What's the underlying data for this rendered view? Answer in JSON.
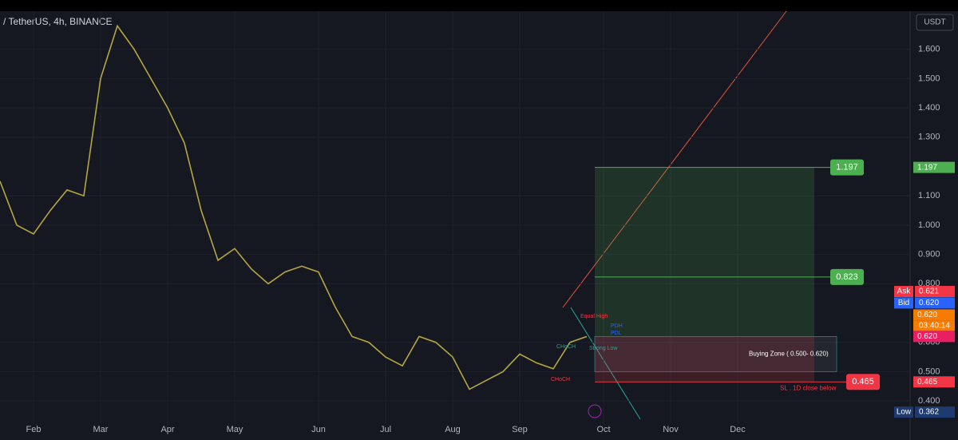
{
  "chart_data": {
    "type": "line",
    "title": "/ TetherUS, 4h, BINANCE",
    "currency": "USDT",
    "color": "#b5a642",
    "categories": [
      null,
      null,
      "Feb",
      null,
      null,
      null,
      "Mar",
      null,
      null,
      null,
      "Apr",
      null,
      null,
      null,
      "May",
      null,
      null,
      null,
      null,
      "Jun",
      null,
      null,
      null,
      "Jul",
      null,
      null,
      null,
      "Aug",
      null,
      null,
      null,
      "Sep",
      null,
      null,
      null,
      null,
      "Oct",
      null,
      null,
      null,
      "Nov",
      null,
      null,
      null,
      "Dec",
      null,
      null,
      null,
      null,
      null,
      null,
      null,
      null,
      null
    ],
    "values": [
      1.15,
      1.0,
      0.97,
      1.05,
      1.12,
      1.1,
      1.5,
      1.68,
      1.6,
      1.5,
      1.4,
      1.28,
      1.05,
      0.88,
      0.92,
      0.85,
      0.8,
      0.84,
      0.86,
      0.84,
      0.72,
      0.62,
      0.6,
      0.55,
      0.52,
      0.62,
      0.6,
      0.55,
      0.44,
      0.47,
      0.5,
      0.56,
      0.53,
      0.51,
      0.6,
      0.62,
      null,
      null,
      null,
      null,
      null,
      null,
      null,
      null,
      null,
      null,
      null,
      null,
      null,
      null,
      null,
      null,
      null,
      null
    ],
    "ylim": [
      0.275,
      1.73
    ],
    "yticks": [
      {
        "value": 0.4,
        "label": "0.400"
      },
      {
        "value": 0.5,
        "label": "0.500"
      },
      {
        "value": 0.6,
        "label": "0.600"
      },
      {
        "value": 0.8,
        "label": "0.800"
      },
      {
        "value": 0.9,
        "label": "0.900"
      },
      {
        "value": 1.0,
        "label": "1.000"
      },
      {
        "value": 1.1,
        "label": "1.100"
      },
      {
        "value": 1.3,
        "label": "1.300"
      },
      {
        "value": 1.4,
        "label": "1.400"
      },
      {
        "value": 1.5,
        "label": "1.500"
      },
      {
        "value": 1.6,
        "label": "1.600"
      }
    ],
    "grid": true,
    "target_levels": [
      {
        "value": 1.197,
        "color": "#4caf50"
      },
      {
        "value": 0.823,
        "color": "#4caf50"
      },
      {
        "value": 0.465,
        "color": "#f23645"
      }
    ],
    "buying_zone": {
      "low": 0.5,
      "high": 0.62,
      "label": "Buying Zone ( 0.500- 0.620)"
    },
    "stop_label": "SL . 1D close below",
    "annotations": [
      "Equal High",
      "PDH",
      "PDL",
      "CHoCH",
      "Strong Low",
      "CHoCH"
    ],
    "price_tags": [
      {
        "name": "Ask",
        "value": 0.621,
        "label": "0.621",
        "color": "#f23645"
      },
      {
        "name": "Bid",
        "value": 0.62,
        "label": "0.620",
        "color": "#2962ff"
      },
      {
        "value": 0.62,
        "label": "0.620",
        "color": "#f57c00"
      },
      {
        "value": 0.62,
        "label": "0.620",
        "color": "#e91e63"
      },
      {
        "value": 1.197,
        "label": "1.197",
        "color": "#4caf50"
      },
      {
        "value": 0.465,
        "label": "0.465",
        "color": "#f23645"
      },
      {
        "name": "Low",
        "value": 0.362,
        "label": "0.362",
        "color": "#1e3a6e"
      }
    ],
    "countdown": "03:40:14"
  }
}
